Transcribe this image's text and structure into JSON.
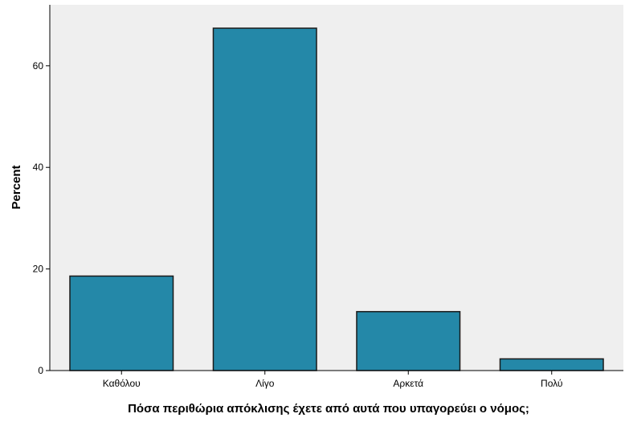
{
  "chart_data": {
    "type": "bar",
    "categories": [
      "Καθόλου",
      "Λίγο",
      "Αρκετά",
      "Πολύ"
    ],
    "values": [
      18.6,
      67.4,
      11.6,
      2.3
    ],
    "xlabel": "Πόσα περιθώρια απόκλισης έχετε από αυτά που  υπαγορεύει ο νόμος;",
    "ylabel": "Percent",
    "ylim": [
      0,
      72
    ],
    "yticks": [
      0,
      20,
      40,
      60
    ],
    "grid": false,
    "legend": "none",
    "colors": {
      "bar": "#2488a8",
      "bar_stroke": "#1a1a1a",
      "plot_background": "#efefef"
    }
  }
}
